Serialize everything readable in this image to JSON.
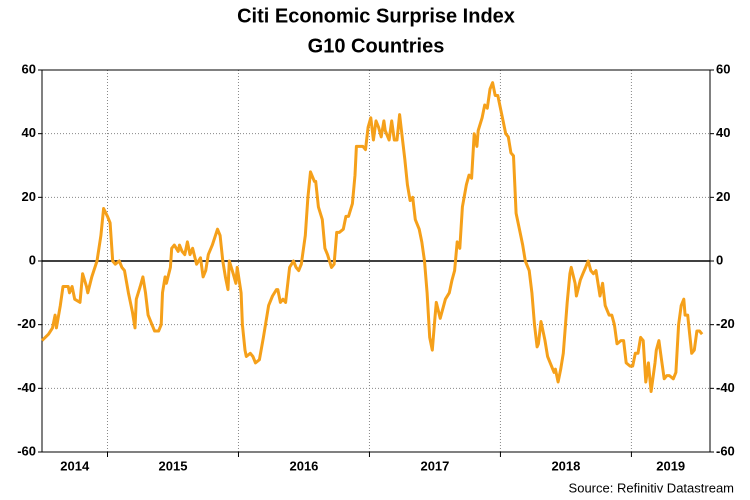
{
  "chart_data": {
    "type": "line",
    "title": "Citi Economic Surprise Index",
    "subtitle": "G10 Countries",
    "source": "Source: Refinitiv Datastream",
    "xlim": [
      2014.5,
      2019.6
    ],
    "xticks": [
      {
        "value": 2014.75,
        "label": "2014"
      },
      {
        "value": 2015.5,
        "label": "2015"
      },
      {
        "value": 2016.5,
        "label": "2016"
      },
      {
        "value": 2017.5,
        "label": "2017"
      },
      {
        "value": 2018.5,
        "label": "2018"
      },
      {
        "value": 2019.3,
        "label": "2019"
      }
    ],
    "xgrid": [
      2015,
      2016,
      2017,
      2018,
      2019
    ],
    "ylim": [
      -60,
      60
    ],
    "yticks": [
      -60,
      -40,
      -20,
      0,
      20,
      40,
      60
    ],
    "y2lim": [
      -60,
      60
    ],
    "y2ticks": [
      -60,
      -40,
      -20,
      0,
      20,
      40,
      60
    ],
    "hline": 0,
    "grid": true,
    "x": [
      2014.5,
      2014.55,
      2014.58,
      2014.6,
      2014.61,
      2014.64,
      2014.66,
      2014.7,
      2014.71,
      2014.73,
      2014.75,
      2014.79,
      2014.81,
      2014.84,
      2014.85,
      2014.88,
      2014.92,
      2014.95,
      2014.97,
      2015.0,
      2015.02,
      2015.04,
      2015.06,
      2015.09,
      2015.11,
      2015.13,
      2015.16,
      2015.19,
      2015.21,
      2015.22,
      2015.25,
      2015.27,
      2015.29,
      2015.31,
      2015.34,
      2015.36,
      2015.39,
      2015.41,
      2015.42,
      2015.44,
      2015.45,
      2015.48,
      2015.49,
      2015.51,
      2015.54,
      2015.55,
      2015.57,
      2015.59,
      2015.61,
      2015.63,
      2015.65,
      2015.68,
      2015.71,
      2015.73,
      2015.75,
      2015.77,
      2015.8,
      2015.84,
      2015.86,
      2015.88,
      2015.9,
      2015.92,
      2015.93,
      2015.96,
      2015.98,
      2015.99,
      2016.02,
      2016.03,
      2016.05,
      2016.06,
      2016.09,
      2016.11,
      2016.13,
      2016.16,
      2016.19,
      2016.21,
      2016.23,
      2016.26,
      2016.29,
      2016.3,
      2016.32,
      2016.34,
      2016.36,
      2016.39,
      2016.42,
      2016.44,
      2016.46,
      2016.48,
      2016.51,
      2016.53,
      2016.55,
      2016.58,
      2016.59,
      2016.61,
      2016.64,
      2016.66,
      2016.68,
      2016.71,
      2016.73,
      2016.75,
      2016.77,
      2016.8,
      2016.82,
      2016.84,
      2016.87,
      2016.89,
      2016.9,
      2016.93,
      2016.95,
      2016.97,
      2016.99,
      2017.01,
      2017.03,
      2017.05,
      2017.07,
      2017.09,
      2017.11,
      2017.12,
      2017.15,
      2017.17,
      2017.19,
      2017.21,
      2017.23,
      2017.25,
      2017.27,
      2017.29,
      2017.31,
      2017.33,
      2017.35,
      2017.38,
      2017.4,
      2017.42,
      2017.44,
      2017.46,
      2017.48,
      2017.5,
      2017.51,
      2017.54,
      2017.56,
      2017.58,
      2017.61,
      2017.63,
      2017.65,
      2017.67,
      2017.69,
      2017.71,
      2017.74,
      2017.76,
      2017.78,
      2017.8,
      2017.82,
      2017.83,
      2017.86,
      2017.88,
      2017.9,
      2017.92,
      2017.94,
      2017.96,
      2017.98,
      2017.99,
      2018.02,
      2018.04,
      2018.06,
      2018.08,
      2018.1,
      2018.12,
      2018.15,
      2018.17,
      2018.19,
      2018.22,
      2018.24,
      2018.26,
      2018.28,
      2018.29,
      2018.31,
      2018.34,
      2018.36,
      2018.38,
      2018.41,
      2018.42,
      2018.44,
      2018.46,
      2018.48,
      2018.51,
      2018.53,
      2018.54,
      2018.57,
      2018.58,
      2018.61,
      2018.63,
      2018.65,
      2018.67,
      2018.69,
      2018.71,
      2018.73,
      2018.76,
      2018.78,
      2018.8,
      2018.83,
      2018.85,
      2018.87,
      2018.89,
      2018.92,
      2018.94,
      2018.96,
      2018.99,
      2019.01,
      2019.03,
      2019.05,
      2019.07,
      2019.09,
      2019.11,
      2019.13,
      2019.15,
      2019.18,
      2019.19,
      2019.21,
      2019.23,
      2019.25,
      2019.27,
      2019.29,
      2019.32,
      2019.34,
      2019.36,
      2019.38,
      2019.4,
      2019.41,
      2019.43,
      2019.44,
      2019.46,
      2019.48,
      2019.5,
      2019.52,
      2019.54
    ],
    "series": [
      {
        "color": "#f5a01a",
        "values": [
          -25,
          -23,
          -21,
          -17,
          -21,
          -14,
          -8,
          -8,
          -10,
          -8,
          -12,
          -13,
          -4,
          -8,
          -10,
          -5,
          0,
          8,
          16.5,
          14,
          12,
          0,
          -1,
          0,
          -2,
          -3,
          -10,
          -16,
          -21,
          -12,
          -8,
          -5,
          -10,
          -17,
          -20,
          -22,
          -22,
          -20,
          -10,
          -5,
          -7,
          -2,
          4,
          5,
          3,
          5,
          3,
          2,
          6,
          2,
          4,
          -1,
          1,
          -5,
          -3,
          2,
          5,
          10,
          8,
          0,
          -5,
          -9,
          0,
          -4,
          -7,
          -2,
          -10,
          -20,
          -28,
          -30,
          -29,
          -30,
          -32,
          -31,
          -24,
          -19,
          -14,
          -11,
          -9,
          -9,
          -13,
          -12,
          -13,
          -2,
          0,
          -2,
          -3,
          -1,
          8,
          20,
          28,
          25,
          25,
          17,
          13,
          4,
          2,
          -2,
          -1,
          9,
          9,
          10,
          14,
          14,
          18,
          27,
          36,
          36,
          36,
          35,
          42,
          45,
          38,
          44,
          42,
          39,
          44,
          41,
          38,
          44,
          38,
          38,
          46,
          39,
          32,
          24,
          19,
          20,
          13,
          10,
          6,
          0,
          -10,
          -24,
          -28,
          -18,
          -13,
          -18,
          -15,
          -12,
          -10,
          -6,
          -3,
          6,
          4,
          17,
          24,
          27,
          26,
          40,
          36,
          41,
          45,
          49,
          48,
          54,
          56,
          52,
          52,
          50,
          44,
          40,
          39,
          34,
          33,
          15,
          9,
          5,
          0,
          -3,
          -10,
          -20,
          -27,
          -26,
          -19,
          -25,
          -30,
          -32,
          -35,
          -34,
          -38,
          -34,
          -29,
          -13,
          -4,
          -2,
          -7,
          -11,
          -6,
          -4,
          -2,
          0,
          -3,
          -4,
          -3,
          -11,
          -7,
          -14,
          -17,
          -17,
          -20,
          -26,
          -25,
          -25,
          -32,
          -33,
          -33,
          -29,
          -29,
          -24,
          -25,
          -38,
          -32,
          -41,
          -32,
          -28,
          -25,
          -31,
          -37,
          -36,
          -36,
          -37,
          -35,
          -20,
          -14,
          -12,
          -17,
          -17,
          -21,
          -29,
          -28,
          -22,
          -22,
          -23
        ]
      }
    ]
  }
}
